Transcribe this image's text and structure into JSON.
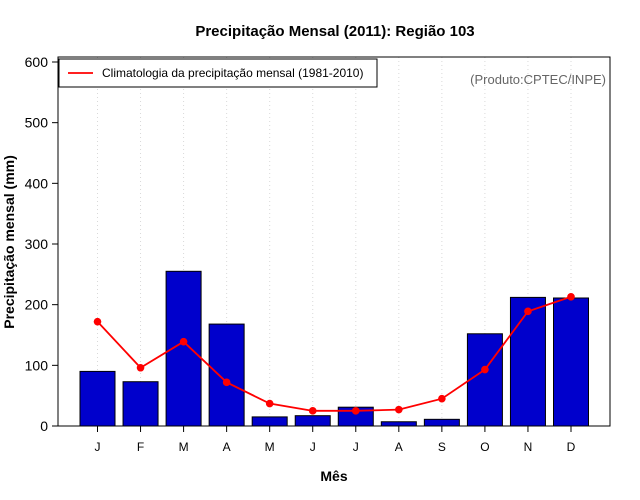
{
  "colors": {
    "bar_fill": "#0000CC",
    "bar_stroke": "#000000",
    "line": "#FF0000",
    "grid": "#D9D9D9",
    "credit": "#666666"
  },
  "chart_data": {
    "type": "bar",
    "title": "Precipitação Mensal (2011): Região 103",
    "xlabel": "Mês",
    "ylabel": "Precipitação mensal (mm)",
    "ylim": [
      0,
      600
    ],
    "yticks": [
      0,
      100,
      200,
      300,
      400,
      500,
      600
    ],
    "categories": [
      "J",
      "F",
      "M",
      "A",
      "M",
      "J",
      "J",
      "A",
      "S",
      "O",
      "N",
      "D"
    ],
    "series": [
      {
        "name": "Precipitação mensal 2011",
        "type": "bar",
        "values": [
          90,
          73,
          255,
          168,
          15,
          17,
          31,
          7,
          11,
          152,
          212,
          211
        ]
      },
      {
        "name": "Climatologia da precipitação mensal (1981-2010)",
        "type": "line",
        "values": [
          172,
          96,
          139,
          72,
          37,
          25,
          25,
          27,
          45,
          93,
          189,
          213
        ]
      }
    ],
    "legend": {
      "position": "top-left",
      "entries": [
        "Climatologia da precipitação mensal (1981-2010)"
      ]
    },
    "annotation": "(Produto:CPTEC/INPE)",
    "grid": "vertical-dotted"
  }
}
